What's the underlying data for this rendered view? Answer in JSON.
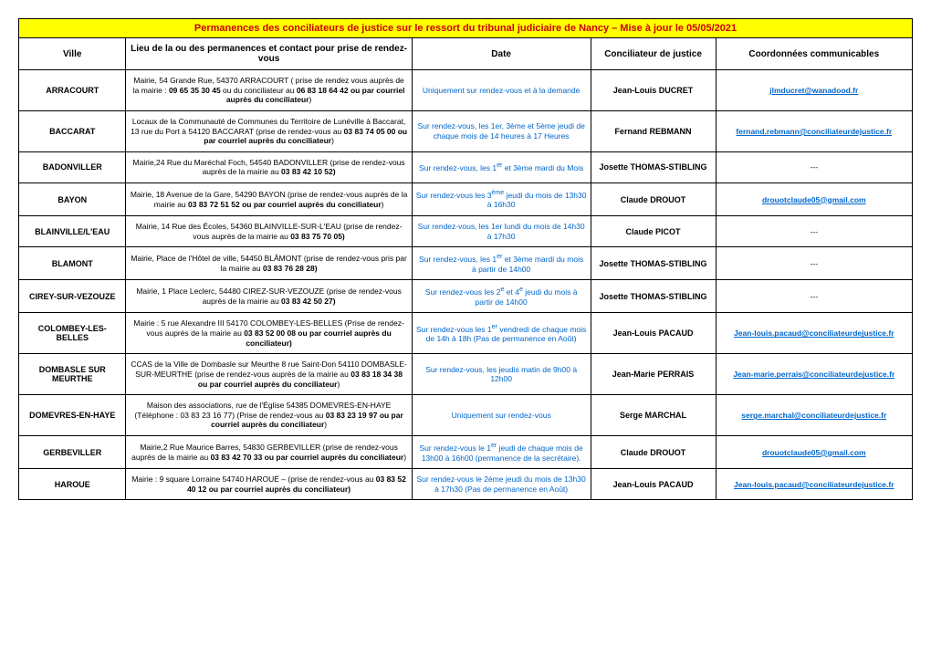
{
  "title": "Permanences des conciliateurs de justice sur le ressort du tribunal judiciaire de Nancy – Mise à jour le 05/05/2021",
  "headers": {
    "ville": "Ville",
    "lieu": "Lieu de la ou des permanences et contact pour prise de rendez-vous",
    "date": "Date",
    "conciliateur": "Conciliateur de justice",
    "coord": "Coordonnées communicables"
  },
  "rows": [
    {
      "ville": "ARRACOURT",
      "lieu": "Mairie, 54 Grande Rue, 54370 ARRACOURT ( prise de rendez vous auprès de la mairie : <b>09 65 35 30 45</b> ou du conciliateur au <b>06 83 18 64 42 ou par courriel auprès du conciliateur</b>)",
      "date": "Uniquement sur rendez-vous et à la demande",
      "conciliateur": "Jean-Louis DUCRET",
      "coord": "jlmducret@wanadood.fr",
      "coord_link": true
    },
    {
      "ville": "BACCARAT",
      "lieu": "Locaux de la Communauté de Communes du Territoire de Lunéville à Baccarat, 13 rue du Port à 54120 BACCARAT (prise de rendez-vous au <b>03 83 74 05 00 ou par courriel auprès du conciliateur</b>)",
      "date": "Sur rendez-vous, les 1er, 3ème et 5ème jeudi de chaque mois de 14 heures à 17 Heures",
      "conciliateur": "Fernand REBMANN",
      "coord": "fernand.rebmann@conciliateurdejustice.fr",
      "coord_link": true
    },
    {
      "ville": "BADONVILLER",
      "lieu": "Mairie,24 Rue du Maréchal Foch, 54540 BADONVILLER (prise de rendez-vous auprès de la mairie au <b>03 83 42 10 52)</b>",
      "date": "Sur rendez-vous, les 1<sup>er</sup> et 3ème mardi du Mois",
      "conciliateur": "Josette THOMAS-STIBLING",
      "coord": "---",
      "coord_link": false
    },
    {
      "ville": "BAYON",
      "lieu": "Mairie, 18 Avenue de la Gare, 54290 BAYON (prise de rendez-vous auprès de la mairie au <b>03 83 72 51 52 ou par courriel auprès du conciliateur</b>)",
      "date": "Sur rendez-vous les 3<sup>ème</sup> jeudi du mois de 13h30 à 16h30",
      "conciliateur": "Claude DROUOT",
      "coord": "drouotclaude05@gmail.com",
      "coord_link": true
    },
    {
      "ville": "BLAINVILLE/L'EAU",
      "lieu": "Mairie, 14 Rue des Écoles, 54360 BLAINVILLE-SUR-L'EAU (prise de rendez-vous auprès de la mairie au <b>03 83 75 70 05)</b>",
      "date": "Sur rendez-vous, les 1er lundi du mois de 14h30 à 17h30",
      "conciliateur": "Claude PICOT",
      "coord": "---",
      "coord_link": false
    },
    {
      "ville": "BLAMONT",
      "lieu": "Mairie, Place de l'Hôtel de ville, 54450 BLÂMONT (prise de rendez-vous pris par la mairie au <b>03 83 76 28 28)</b>",
      "date": "Sur rendez-vous, les 1<sup>er</sup> et 3ème mardi du mois à partir de 14h00",
      "conciliateur": "Josette THOMAS-STIBLING",
      "coord": "---",
      "coord_link": false
    },
    {
      "ville": "CIREY-SUR-VEZOUZE",
      "lieu": "Mairie, 1 Place Leclerc, 54480 CIREZ-SUR-VEZOUZE (prise de rendez-vous auprès de la mairie au <b>03 83 42 50 27)</b>",
      "date": "Sur rendez-vous les 2<sup>e</sup> et 4<sup>e</sup> jeudi du mois à partir de 14h00",
      "conciliateur": "Josette THOMAS-STIBLING",
      "coord": "---",
      "coord_link": false
    },
    {
      "ville": "COLOMBEY-LES-BELLES",
      "lieu": "Mairie : 5 rue Alexandre III 54170 COLOMBEY-LES-BELLES (Prise de rendez-vous auprès de la mairie au <b>03 83 52 00 08 ou par courriel auprès du conciliateur)</b>",
      "date": "Sur rendez-vous les 1<sup>er</sup> vendredi de chaque mois de 14h à 18h (Pas de permanence en Août)",
      "conciliateur": "Jean-Louis PACAUD",
      "coord": "Jean-louis.pacaud@conciliateurdejustice.fr",
      "coord_link": true
    },
    {
      "ville": "DOMBASLE SUR MEURTHE",
      "lieu": "CCAS de la Ville de Dombasle sur Meurthe 8 rue Saint-Don 54110 DOMBASLE-SUR-MEURTHE (prise de rendez-vous auprès de la mairie au <b>03 83 18 34 38 ou par courriel auprès du conciliateur</b>)",
      "date": "Sur rendez-vous, les jeudis matin de 9h00 à 12h00",
      "conciliateur": "Jean-Marie PERRAIS",
      "coord": "Jean-marie.perrais@conciliateurdejustice.fr",
      "coord_link": true
    },
    {
      "ville": "DOMEVRES-EN-HAYE",
      "lieu": "Maison des associations, rue de l'Église 54385 DOMEVRES-EN-HAYE (Téléphone : 03 83 23 16 77) (Prise de rendez-vous au <b>03 83 23 19 97 ou par courriel auprès du conciliateur</b>)",
      "date": "Uniquement sur rendez-vous",
      "conciliateur": "Serge MARCHAL",
      "coord": "serge.marchal@conciliateurdejustice.fr",
      "coord_link": true
    },
    {
      "ville": "GERBEVILLER",
      "lieu": "Mairie,2 Rue Maurice Barres, 54830 GERBEVILLER (prise de rendez-vous auprès de la mairie au <b>03 83 42 70 33 ou par courriel auprès du conciliateur</b>)",
      "date": "Sur rendez-vous le 1<sup>er</sup> jeudi de chaque mois de 13h00 à 16h00 (permanence de la secrétaire).",
      "conciliateur": "Claude DROUOT",
      "coord": "drouotclaude05@gmail.com",
      "coord_link": true
    },
    {
      "ville": "HAROUE",
      "lieu": "Mairie : 9 square Lorraine 54740 HAROUÉ – (prise de rendez-vous au <b>03 83 52 40 12 ou par courriel auprès du conciliateur)</b>",
      "date": "Sur rendez-vous le 2ème jeudi du mois de 13h30 à 17h30 (Pas de permanence en Août)",
      "conciliateur": "Jean-Louis PACAUD",
      "coord": "Jean-louis.pacaud@conciliateurdejustice.fr",
      "coord_link": true
    }
  ]
}
